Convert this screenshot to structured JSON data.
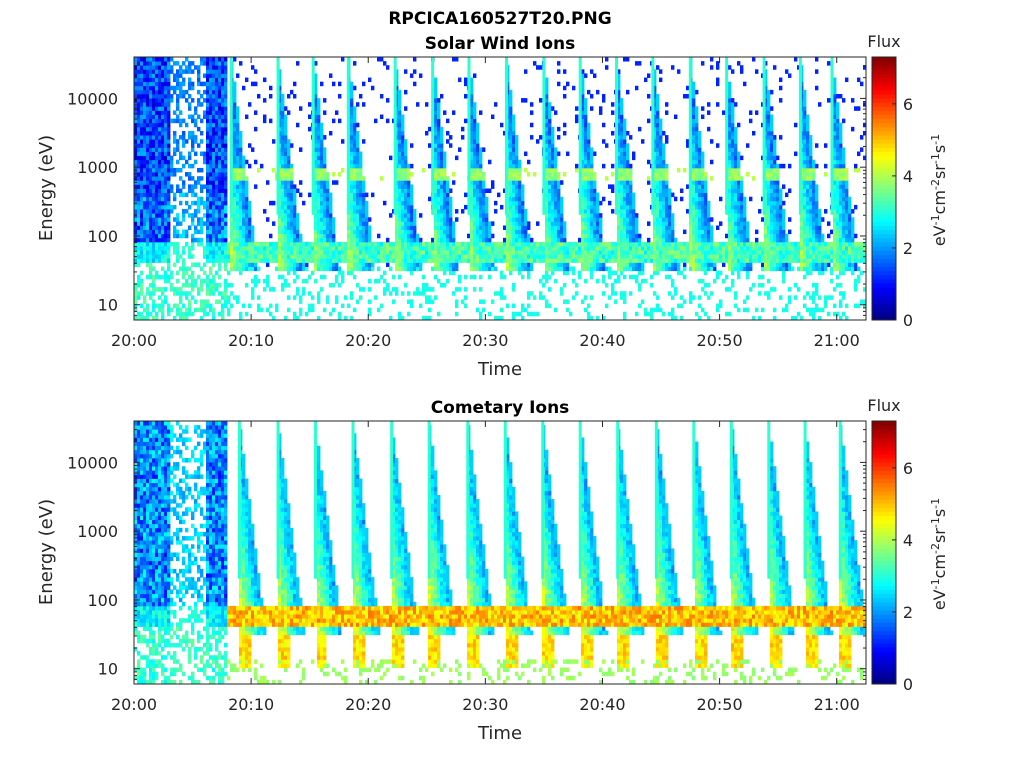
{
  "figure": {
    "title": "RPCICA160527T20.PNG"
  },
  "chart_data": [
    {
      "type": "heatmap",
      "title": "Solar Wind Ions",
      "xlabel": "Time",
      "ylabel": "Energy (eV)",
      "xticks": [
        "20:00",
        "20:10",
        "20:20",
        "20:30",
        "20:40",
        "20:50",
        "21:00"
      ],
      "xlim_minutes": [
        0,
        62.5
      ],
      "yscale": "log",
      "ylim": [
        6,
        40000
      ],
      "yticks": [
        10,
        100,
        1000,
        10000
      ],
      "yticklabels": [
        "10",
        "100",
        "1000",
        "10000"
      ],
      "colorbar": {
        "label": "Flux",
        "units": "eV-1cm-2sr-1s-1",
        "range": [
          0,
          7.3
        ],
        "ticks": [
          "0",
          "2",
          "4",
          "6"
        ]
      },
      "sweep_start_minutes": [
        8.3,
        12.3,
        15.3,
        18.3,
        22.3,
        25.5,
        28.6,
        31.8,
        35.0,
        38.1,
        41.2,
        44.3,
        47.5,
        50.6,
        53.8,
        56.9,
        59.6
      ],
      "features": {
        "pre_period_minutes": [
          0,
          8
        ],
        "band_energy_ev": [
          40,
          80
        ],
        "band_level": 3.2,
        "peak_energy_ev": 800,
        "peak_level": 3.8
      }
    },
    {
      "type": "heatmap",
      "title": "Cometary Ions",
      "xlabel": "Time",
      "ylabel": "Energy (eV)",
      "xticks": [
        "20:00",
        "20:10",
        "20:20",
        "20:30",
        "20:40",
        "20:50",
        "21:00"
      ],
      "xlim_minutes": [
        0,
        62.5
      ],
      "yscale": "log",
      "ylim": [
        6,
        40000
      ],
      "yticks": [
        10,
        100,
        1000,
        10000
      ],
      "yticklabels": [
        "10",
        "100",
        "1000",
        "10000"
      ],
      "colorbar": {
        "label": "Flux",
        "units": "eV-1cm-2sr-1s-1",
        "range": [
          0,
          7.3
        ],
        "ticks": [
          "0",
          "2",
          "4",
          "6"
        ]
      },
      "sweep_start_minutes": [
        9.0,
        12.3,
        15.5,
        18.7,
        22.0,
        25.2,
        28.5,
        31.7,
        34.9,
        38.1,
        41.3,
        44.6,
        47.8,
        51.0,
        54.2,
        57.3,
        60.3
      ],
      "features": {
        "pre_period_minutes": [
          0,
          8
        ],
        "band_energy_ev": [
          40,
          80
        ],
        "band_level": 5.0,
        "low_energy_blocks_ev": [
          10,
          30
        ],
        "low_energy_block_level": 4.8
      }
    }
  ]
}
